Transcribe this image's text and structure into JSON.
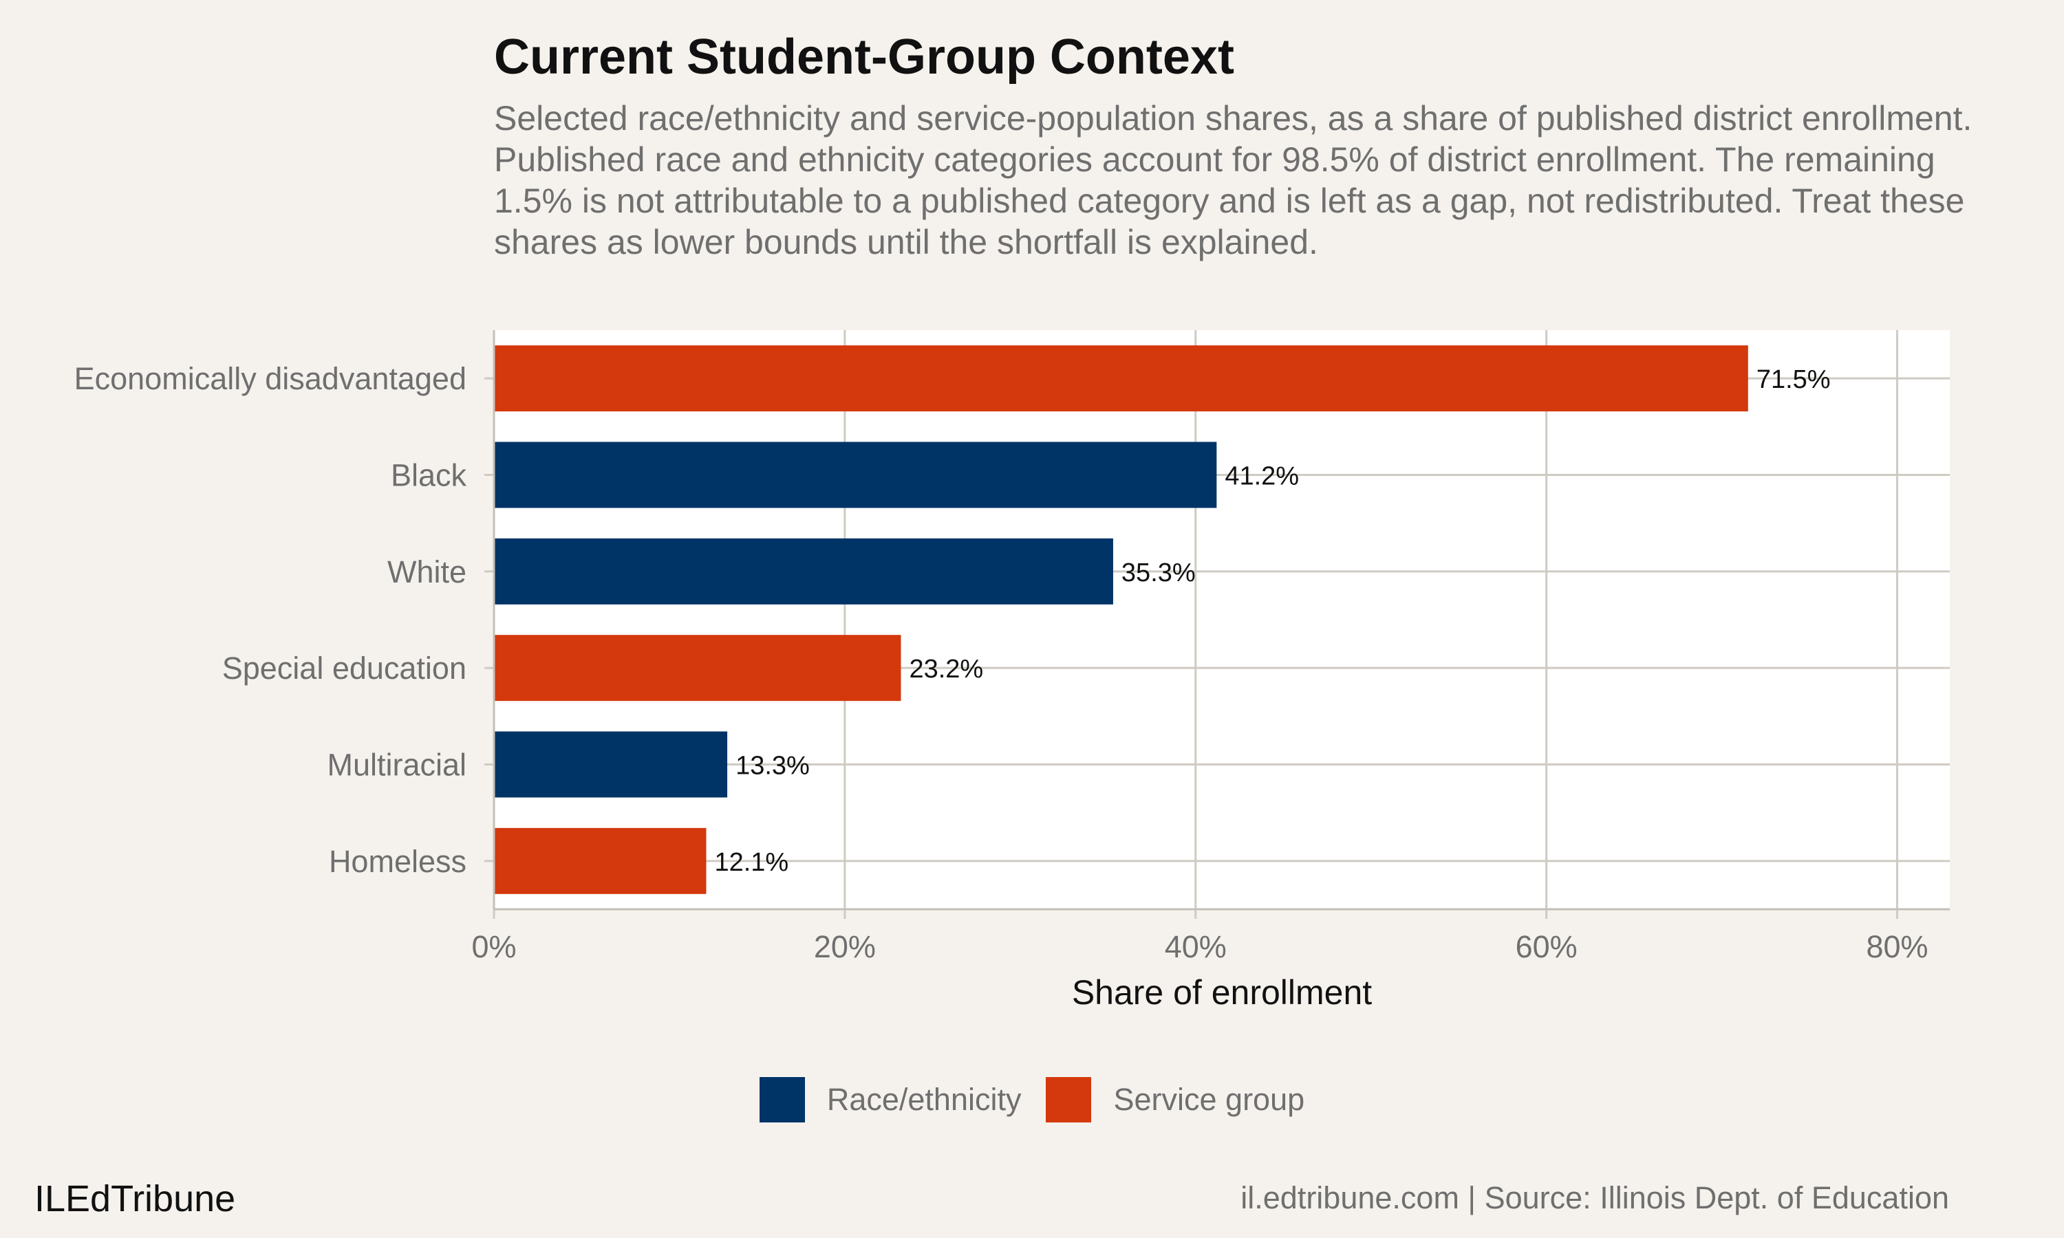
{
  "chart_data": {
    "type": "bar",
    "orientation": "horizontal",
    "title": "Current Student-Group Context",
    "subtitle": "Selected race/ethnicity and service-population shares, as a share of published district enrollment. Published race and ethnicity categories account for 98.5% of district enrollment. The remaining 1.5% is not attributable to a published category and is left as a gap, not redistributed. Treat these shares as lower bounds until the shortfall is explained.",
    "categories": [
      "Economically disadvantaged",
      "Black",
      "White",
      "Special education",
      "Multiracial",
      "Homeless"
    ],
    "values": [
      71.5,
      41.2,
      35.3,
      23.2,
      13.3,
      12.1
    ],
    "data_labels": [
      "71.5%",
      "41.2%",
      "35.3%",
      "23.2%",
      "13.3%",
      "12.1%"
    ],
    "groups": [
      "Service group",
      "Race/ethnicity",
      "Race/ethnicity",
      "Service group",
      "Race/ethnicity",
      "Service group"
    ],
    "xlabel": "Share of enrollment",
    "ylabel": "",
    "xlim": [
      0,
      83
    ],
    "xticks": [
      0,
      20,
      40,
      60,
      80
    ],
    "xtick_labels": [
      "0%",
      "20%",
      "40%",
      "60%",
      "80%"
    ],
    "grid": true,
    "legend": {
      "placement": "bottom",
      "entries": [
        {
          "label": "Race/ethnicity",
          "color": "#003366"
        },
        {
          "label": "Service group",
          "color": "#d4380d"
        }
      ]
    }
  },
  "colors": {
    "background": "#f5f2ed",
    "panel": "#ffffff",
    "grid": "#cfcbc3",
    "race": "#003366",
    "service": "#d4380d"
  },
  "footer": {
    "brand": "ILEdTribune",
    "source": "il.edtribune.com | Source: Illinois Dept. of Education"
  }
}
